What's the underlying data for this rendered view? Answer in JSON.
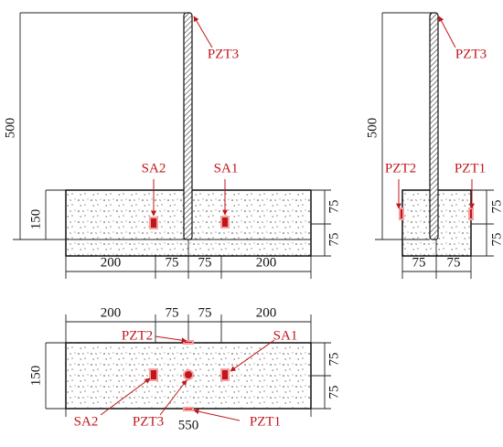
{
  "front_view": {
    "labels": [
      "PZT3",
      "SA2",
      "SA1"
    ],
    "height": "500",
    "base_height": "150",
    "right_dims": [
      "75",
      "75"
    ],
    "bottom_dims": [
      "200",
      "75",
      "75",
      "200"
    ]
  },
  "side_view": {
    "labels": [
      "PZT3",
      "PZT2",
      "PZT1"
    ],
    "height": "500",
    "right_dims": [
      "75",
      "75"
    ],
    "bottom_dims": [
      "75",
      "75"
    ]
  },
  "plan_view": {
    "labels": [
      "PZT2",
      "SA1",
      "SA2",
      "PZT3",
      "PZT1"
    ],
    "width": "550",
    "left_dim": "150",
    "right_dims": [
      "75",
      "75"
    ],
    "top_dims": [
      "200",
      "75",
      "75",
      "200"
    ]
  }
}
